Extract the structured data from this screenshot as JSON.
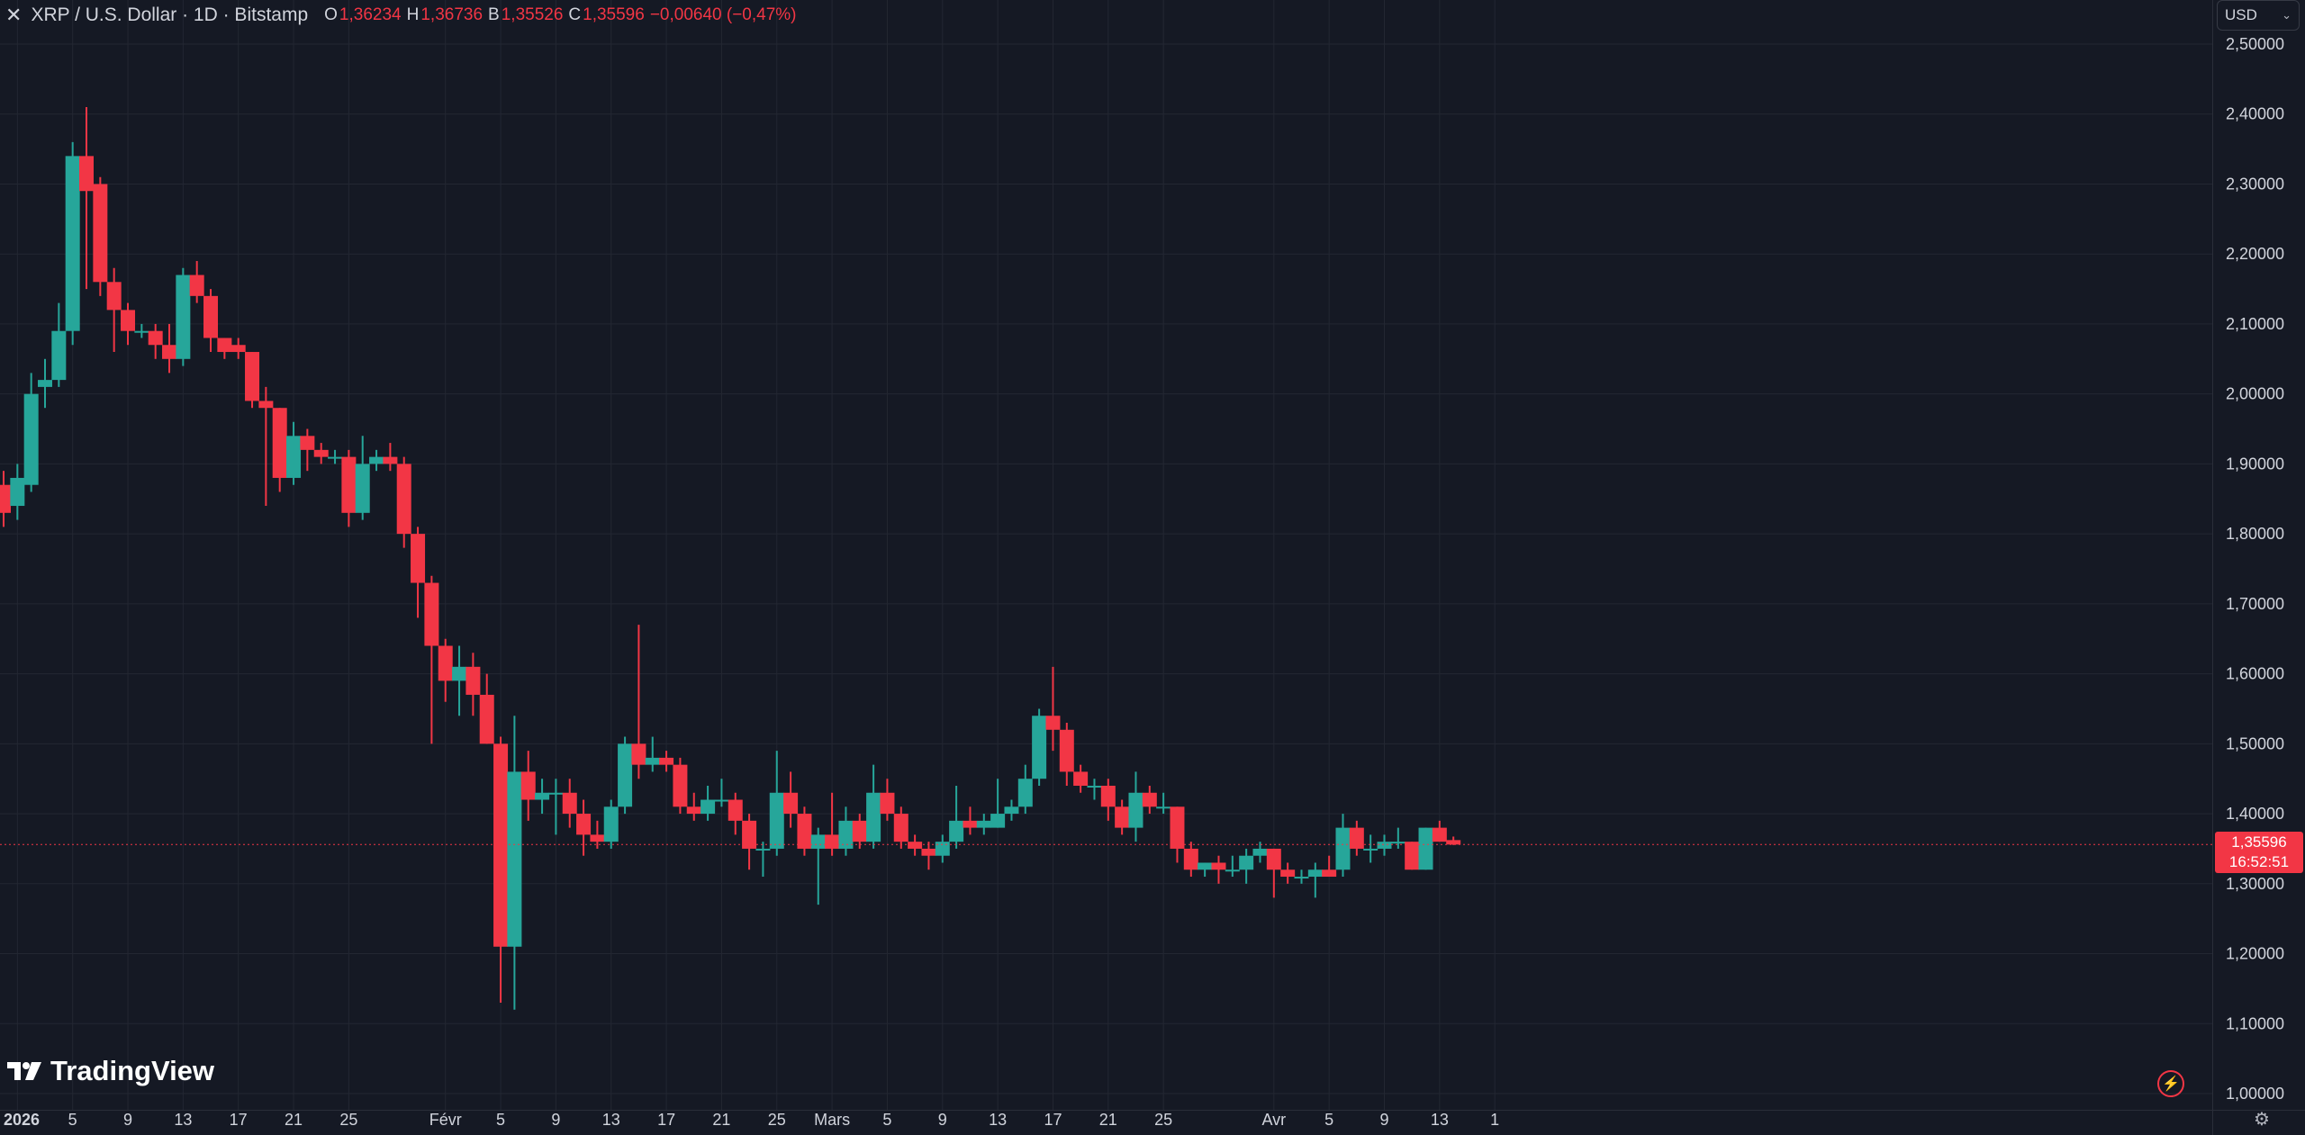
{
  "legend": {
    "symbol": "XRP / U.S. Dollar · 1D · Bitstamp",
    "o_label": "O",
    "o_value": "1,36234",
    "h_label": "H",
    "h_value": "1,36736",
    "b_label": "B",
    "b_value": "1,35526",
    "c_label": "C",
    "c_value": "1,35596",
    "change": "−0,00640 (−0,47%)"
  },
  "currency": {
    "label": "USD"
  },
  "price_tag": {
    "price": "1,35596",
    "countdown": "16:52:51"
  },
  "brand": {
    "name": "TradingView"
  },
  "colors": {
    "up": "#26a69a",
    "down": "#f23645",
    "background": "#151924",
    "grid": "#232732",
    "text": "#d1d4dc"
  },
  "chart_data": {
    "type": "candlestick",
    "title": "",
    "interval": "1D",
    "exchange": "Bitstamp",
    "ylim": [
      1.0,
      2.5
    ],
    "y_ticks": [
      "1,00000",
      "1,10000",
      "1,20000",
      "1,30000",
      "1,40000",
      "1,50000",
      "1,60000",
      "1,70000",
      "1,80000",
      "1,90000",
      "2,00000",
      "2,10000",
      "2,20000",
      "2,30000",
      "2,40000",
      "2,50000"
    ],
    "x_ticks": [
      "2026",
      "5",
      "9",
      "13",
      "17",
      "21",
      "25",
      "Févr",
      "5",
      "9",
      "13",
      "17",
      "21",
      "25",
      "Mars",
      "5",
      "9",
      "13",
      "17",
      "21",
      "25",
      "Avr",
      "5",
      "9",
      "13",
      "1"
    ],
    "last_price": 1.35596,
    "candles": [
      {
        "date": "2025-12-31",
        "o": 1.87,
        "h": 1.89,
        "l": 1.81,
        "c": 1.83
      },
      {
        "date": "2026-01-01",
        "o": 1.84,
        "h": 1.9,
        "l": 1.82,
        "c": 1.88
      },
      {
        "date": "2026-01-02",
        "o": 1.87,
        "h": 2.03,
        "l": 1.86,
        "c": 2.0
      },
      {
        "date": "2026-01-03",
        "o": 2.01,
        "h": 2.05,
        "l": 1.98,
        "c": 2.02
      },
      {
        "date": "2026-01-04",
        "o": 2.02,
        "h": 2.13,
        "l": 2.01,
        "c": 2.09
      },
      {
        "date": "2026-01-05",
        "o": 2.09,
        "h": 2.36,
        "l": 2.07,
        "c": 2.34
      },
      {
        "date": "2026-01-06",
        "o": 2.34,
        "h": 2.41,
        "l": 2.15,
        "c": 2.29
      },
      {
        "date": "2026-01-07",
        "o": 2.3,
        "h": 2.31,
        "l": 2.14,
        "c": 2.16
      },
      {
        "date": "2026-01-08",
        "o": 2.16,
        "h": 2.18,
        "l": 2.06,
        "c": 2.12
      },
      {
        "date": "2026-01-09",
        "o": 2.12,
        "h": 2.13,
        "l": 2.07,
        "c": 2.09
      },
      {
        "date": "2026-01-10",
        "o": 2.09,
        "h": 2.1,
        "l": 2.08,
        "c": 2.09
      },
      {
        "date": "2026-01-11",
        "o": 2.09,
        "h": 2.1,
        "l": 2.05,
        "c": 2.07
      },
      {
        "date": "2026-01-12",
        "o": 2.07,
        "h": 2.1,
        "l": 2.03,
        "c": 2.05
      },
      {
        "date": "2026-01-13",
        "o": 2.05,
        "h": 2.18,
        "l": 2.04,
        "c": 2.17
      },
      {
        "date": "2026-01-14",
        "o": 2.17,
        "h": 2.19,
        "l": 2.13,
        "c": 2.14
      },
      {
        "date": "2026-01-15",
        "o": 2.14,
        "h": 2.15,
        "l": 2.06,
        "c": 2.08
      },
      {
        "date": "2026-01-16",
        "o": 2.08,
        "h": 2.08,
        "l": 2.05,
        "c": 2.06
      },
      {
        "date": "2026-01-17",
        "o": 2.07,
        "h": 2.08,
        "l": 2.05,
        "c": 2.06
      },
      {
        "date": "2026-01-18",
        "o": 2.06,
        "h": 2.06,
        "l": 1.98,
        "c": 1.99
      },
      {
        "date": "2026-01-19",
        "o": 1.99,
        "h": 2.01,
        "l": 1.84,
        "c": 1.98
      },
      {
        "date": "2026-01-20",
        "o": 1.98,
        "h": 1.98,
        "l": 1.86,
        "c": 1.88
      },
      {
        "date": "2026-01-21",
        "o": 1.88,
        "h": 1.96,
        "l": 1.87,
        "c": 1.94
      },
      {
        "date": "2026-01-22",
        "o": 1.94,
        "h": 1.95,
        "l": 1.89,
        "c": 1.92
      },
      {
        "date": "2026-01-23",
        "o": 1.92,
        "h": 1.93,
        "l": 1.9,
        "c": 1.91
      },
      {
        "date": "2026-01-24",
        "o": 1.91,
        "h": 1.92,
        "l": 1.9,
        "c": 1.91
      },
      {
        "date": "2026-01-25",
        "o": 1.91,
        "h": 1.92,
        "l": 1.81,
        "c": 1.83
      },
      {
        "date": "2026-01-26",
        "o": 1.83,
        "h": 1.94,
        "l": 1.82,
        "c": 1.9
      },
      {
        "date": "2026-01-27",
        "o": 1.9,
        "h": 1.92,
        "l": 1.89,
        "c": 1.91
      },
      {
        "date": "2026-01-28",
        "o": 1.91,
        "h": 1.93,
        "l": 1.89,
        "c": 1.9
      },
      {
        "date": "2026-01-29",
        "o": 1.9,
        "h": 1.91,
        "l": 1.78,
        "c": 1.8
      },
      {
        "date": "2026-01-30",
        "o": 1.8,
        "h": 1.81,
        "l": 1.68,
        "c": 1.73
      },
      {
        "date": "2026-01-31",
        "o": 1.73,
        "h": 1.74,
        "l": 1.5,
        "c": 1.64
      },
      {
        "date": "2026-02-01",
        "o": 1.64,
        "h": 1.65,
        "l": 1.56,
        "c": 1.59
      },
      {
        "date": "2026-02-02",
        "o": 1.59,
        "h": 1.64,
        "l": 1.54,
        "c": 1.61
      },
      {
        "date": "2026-02-03",
        "o": 1.61,
        "h": 1.63,
        "l": 1.54,
        "c": 1.57
      },
      {
        "date": "2026-02-04",
        "o": 1.57,
        "h": 1.6,
        "l": 1.5,
        "c": 1.5
      },
      {
        "date": "2026-02-05",
        "o": 1.5,
        "h": 1.51,
        "l": 1.13,
        "c": 1.21
      },
      {
        "date": "2026-02-06",
        "o": 1.21,
        "h": 1.54,
        "l": 1.12,
        "c": 1.46
      },
      {
        "date": "2026-02-07",
        "o": 1.46,
        "h": 1.49,
        "l": 1.39,
        "c": 1.42
      },
      {
        "date": "2026-02-08",
        "o": 1.42,
        "h": 1.45,
        "l": 1.4,
        "c": 1.43
      },
      {
        "date": "2026-02-09",
        "o": 1.43,
        "h": 1.45,
        "l": 1.37,
        "c": 1.43
      },
      {
        "date": "2026-02-10",
        "o": 1.43,
        "h": 1.45,
        "l": 1.38,
        "c": 1.4
      },
      {
        "date": "2026-02-11",
        "o": 1.4,
        "h": 1.42,
        "l": 1.34,
        "c": 1.37
      },
      {
        "date": "2026-02-12",
        "o": 1.37,
        "h": 1.39,
        "l": 1.35,
        "c": 1.36
      },
      {
        "date": "2026-02-13",
        "o": 1.36,
        "h": 1.42,
        "l": 1.35,
        "c": 1.41
      },
      {
        "date": "2026-02-14",
        "o": 1.41,
        "h": 1.51,
        "l": 1.4,
        "c": 1.5
      },
      {
        "date": "2026-02-15",
        "o": 1.5,
        "h": 1.67,
        "l": 1.45,
        "c": 1.47
      },
      {
        "date": "2026-02-16",
        "o": 1.47,
        "h": 1.51,
        "l": 1.46,
        "c": 1.48
      },
      {
        "date": "2026-02-17",
        "o": 1.48,
        "h": 1.49,
        "l": 1.46,
        "c": 1.47
      },
      {
        "date": "2026-02-18",
        "o": 1.47,
        "h": 1.48,
        "l": 1.4,
        "c": 1.41
      },
      {
        "date": "2026-02-19",
        "o": 1.41,
        "h": 1.43,
        "l": 1.39,
        "c": 1.4
      },
      {
        "date": "2026-02-20",
        "o": 1.4,
        "h": 1.44,
        "l": 1.39,
        "c": 1.42
      },
      {
        "date": "2026-02-21",
        "o": 1.42,
        "h": 1.45,
        "l": 1.41,
        "c": 1.42
      },
      {
        "date": "2026-02-22",
        "o": 1.42,
        "h": 1.43,
        "l": 1.37,
        "c": 1.39
      },
      {
        "date": "2026-02-23",
        "o": 1.39,
        "h": 1.4,
        "l": 1.32,
        "c": 1.35
      },
      {
        "date": "2026-02-24",
        "o": 1.35,
        "h": 1.36,
        "l": 1.31,
        "c": 1.35
      },
      {
        "date": "2026-02-25",
        "o": 1.35,
        "h": 1.49,
        "l": 1.34,
        "c": 1.43
      },
      {
        "date": "2026-02-26",
        "o": 1.43,
        "h": 1.46,
        "l": 1.38,
        "c": 1.4
      },
      {
        "date": "2026-02-27",
        "o": 1.4,
        "h": 1.41,
        "l": 1.34,
        "c": 1.35
      },
      {
        "date": "2026-02-28",
        "o": 1.35,
        "h": 1.38,
        "l": 1.27,
        "c": 1.37
      },
      {
        "date": "2026-03-01",
        "o": 1.37,
        "h": 1.43,
        "l": 1.34,
        "c": 1.35
      },
      {
        "date": "2026-03-02",
        "o": 1.35,
        "h": 1.41,
        "l": 1.34,
        "c": 1.39
      },
      {
        "date": "2026-03-03",
        "o": 1.39,
        "h": 1.4,
        "l": 1.35,
        "c": 1.36
      },
      {
        "date": "2026-03-04",
        "o": 1.36,
        "h": 1.47,
        "l": 1.35,
        "c": 1.43
      },
      {
        "date": "2026-03-05",
        "o": 1.43,
        "h": 1.45,
        "l": 1.39,
        "c": 1.4
      },
      {
        "date": "2026-03-06",
        "o": 1.4,
        "h": 1.41,
        "l": 1.35,
        "c": 1.36
      },
      {
        "date": "2026-03-07",
        "o": 1.36,
        "h": 1.37,
        "l": 1.34,
        "c": 1.35
      },
      {
        "date": "2026-03-08",
        "o": 1.35,
        "h": 1.36,
        "l": 1.32,
        "c": 1.34
      },
      {
        "date": "2026-03-09",
        "o": 1.34,
        "h": 1.37,
        "l": 1.33,
        "c": 1.36
      },
      {
        "date": "2026-03-10",
        "o": 1.36,
        "h": 1.44,
        "l": 1.35,
        "c": 1.39
      },
      {
        "date": "2026-03-11",
        "o": 1.39,
        "h": 1.41,
        "l": 1.37,
        "c": 1.38
      },
      {
        "date": "2026-03-12",
        "o": 1.38,
        "h": 1.4,
        "l": 1.37,
        "c": 1.39
      },
      {
        "date": "2026-03-13",
        "o": 1.38,
        "h": 1.45,
        "l": 1.38,
        "c": 1.4
      },
      {
        "date": "2026-03-14",
        "o": 1.4,
        "h": 1.42,
        "l": 1.39,
        "c": 1.41
      },
      {
        "date": "2026-03-15",
        "o": 1.41,
        "h": 1.47,
        "l": 1.4,
        "c": 1.45
      },
      {
        "date": "2026-03-16",
        "o": 1.45,
        "h": 1.55,
        "l": 1.44,
        "c": 1.54
      },
      {
        "date": "2026-03-17",
        "o": 1.54,
        "h": 1.61,
        "l": 1.49,
        "c": 1.52
      },
      {
        "date": "2026-03-18",
        "o": 1.52,
        "h": 1.53,
        "l": 1.44,
        "c": 1.46
      },
      {
        "date": "2026-03-19",
        "o": 1.46,
        "h": 1.47,
        "l": 1.43,
        "c": 1.44
      },
      {
        "date": "2026-03-20",
        "o": 1.44,
        "h": 1.45,
        "l": 1.42,
        "c": 1.44
      },
      {
        "date": "2026-03-21",
        "o": 1.44,
        "h": 1.45,
        "l": 1.39,
        "c": 1.41
      },
      {
        "date": "2026-03-22",
        "o": 1.41,
        "h": 1.42,
        "l": 1.37,
        "c": 1.38
      },
      {
        "date": "2026-03-23",
        "o": 1.38,
        "h": 1.46,
        "l": 1.36,
        "c": 1.43
      },
      {
        "date": "2026-03-24",
        "o": 1.43,
        "h": 1.44,
        "l": 1.4,
        "c": 1.41
      },
      {
        "date": "2026-03-25",
        "o": 1.41,
        "h": 1.43,
        "l": 1.4,
        "c": 1.41
      },
      {
        "date": "2026-03-26",
        "o": 1.41,
        "h": 1.41,
        "l": 1.33,
        "c": 1.35
      },
      {
        "date": "2026-03-27",
        "o": 1.35,
        "h": 1.36,
        "l": 1.31,
        "c": 1.32
      },
      {
        "date": "2026-03-28",
        "o": 1.32,
        "h": 1.33,
        "l": 1.31,
        "c": 1.33
      },
      {
        "date": "2026-03-29",
        "o": 1.33,
        "h": 1.34,
        "l": 1.3,
        "c": 1.32
      },
      {
        "date": "2026-03-30",
        "o": 1.32,
        "h": 1.34,
        "l": 1.31,
        "c": 1.32
      },
      {
        "date": "2026-03-31",
        "o": 1.32,
        "h": 1.35,
        "l": 1.3,
        "c": 1.34
      },
      {
        "date": "2026-04-01",
        "o": 1.34,
        "h": 1.36,
        "l": 1.33,
        "c": 1.35
      },
      {
        "date": "2026-04-02",
        "o": 1.35,
        "h": 1.35,
        "l": 1.28,
        "c": 1.32
      },
      {
        "date": "2026-04-03",
        "o": 1.32,
        "h": 1.33,
        "l": 1.3,
        "c": 1.31
      },
      {
        "date": "2026-04-04",
        "o": 1.31,
        "h": 1.32,
        "l": 1.3,
        "c": 1.31
      },
      {
        "date": "2026-04-05",
        "o": 1.31,
        "h": 1.33,
        "l": 1.28,
        "c": 1.32
      },
      {
        "date": "2026-04-06",
        "o": 1.32,
        "h": 1.34,
        "l": 1.31,
        "c": 1.31
      },
      {
        "date": "2026-04-07",
        "o": 1.32,
        "h": 1.4,
        "l": 1.31,
        "c": 1.38
      },
      {
        "date": "2026-04-08",
        "o": 1.38,
        "h": 1.39,
        "l": 1.34,
        "c": 1.35
      },
      {
        "date": "2026-04-09",
        "o": 1.35,
        "h": 1.37,
        "l": 1.33,
        "c": 1.35
      },
      {
        "date": "2026-04-10",
        "o": 1.35,
        "h": 1.37,
        "l": 1.34,
        "c": 1.36
      },
      {
        "date": "2026-04-11",
        "o": 1.36,
        "h": 1.38,
        "l": 1.35,
        "c": 1.36
      },
      {
        "date": "2026-04-12",
        "o": 1.36,
        "h": 1.36,
        "l": 1.32,
        "c": 1.32
      },
      {
        "date": "2026-04-13",
        "o": 1.32,
        "h": 1.38,
        "l": 1.32,
        "c": 1.38
      },
      {
        "date": "2026-04-14",
        "o": 1.38,
        "h": 1.39,
        "l": 1.36,
        "c": 1.36
      },
      {
        "date": "2026-04-15",
        "o": 1.36234,
        "h": 1.36736,
        "l": 1.35526,
        "c": 1.35596
      }
    ]
  }
}
